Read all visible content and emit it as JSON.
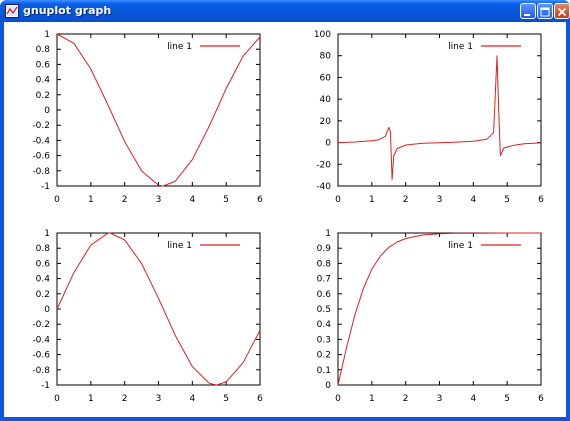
{
  "window": {
    "title": "gnuplot graph",
    "icon": "gnuplot-app-icon",
    "buttons": [
      "minimize",
      "maximize",
      "close"
    ]
  },
  "colors": {
    "line": "#e02020",
    "titlebar": "#0a58e4"
  },
  "chart_data": [
    {
      "type": "line",
      "xlim": [
        0,
        6
      ],
      "ylim": [
        -1,
        1
      ],
      "x_ticks": [
        "0",
        "1",
        "2",
        "3",
        "4",
        "5",
        "6"
      ],
      "y_ticks": [
        "1",
        "0.8",
        "0.6",
        "0.4",
        "0.2",
        "0",
        "-0.2",
        "-0.4",
        "-0.6",
        "-0.8",
        "-1"
      ],
      "grid": false,
      "legend": "top-right",
      "series": [
        {
          "name": "line 1",
          "color": "#e02020",
          "x": [
            0,
            0.5,
            1,
            1.5,
            2,
            2.5,
            3,
            3.14,
            3.5,
            4,
            4.5,
            5,
            5.5,
            6
          ],
          "y": [
            1,
            0.878,
            0.54,
            0.071,
            -0.416,
            -0.801,
            -0.99,
            -1,
            -0.936,
            -0.654,
            -0.211,
            0.284,
            0.709,
            0.96
          ]
        }
      ]
    },
    {
      "type": "line",
      "xlim": [
        0,
        6
      ],
      "ylim": [
        -40,
        100
      ],
      "x_ticks": [
        "0",
        "1",
        "2",
        "3",
        "4",
        "5",
        "6"
      ],
      "y_ticks": [
        "100",
        "80",
        "60",
        "40",
        "20",
        "0",
        "-20",
        "-40"
      ],
      "grid": false,
      "legend": "top-right",
      "series": [
        {
          "name": "line 1",
          "color": "#e02020",
          "x": [
            0,
            0.5,
            1,
            1.2,
            1.4,
            1.5,
            1.55,
            1.6,
            1.65,
            1.75,
            2,
            2.5,
            3,
            3.5,
            4,
            4.4,
            4.6,
            4.7,
            4.75,
            4.8,
            4.9,
            5.2,
            5.5,
            6
          ],
          "y": [
            0,
            0.5,
            1.6,
            2.6,
            5.8,
            14,
            10,
            -34,
            -12,
            -5.5,
            -2.2,
            -0.7,
            -0.1,
            0.4,
            1.2,
            3.1,
            9,
            80,
            30,
            -12,
            -5,
            -2.4,
            -1,
            -0.3
          ]
        }
      ]
    },
    {
      "type": "line",
      "xlim": [
        0,
        6
      ],
      "ylim": [
        -1,
        1
      ],
      "x_ticks": [
        "0",
        "1",
        "2",
        "3",
        "4",
        "5",
        "6"
      ],
      "y_ticks": [
        "1",
        "0.8",
        "0.6",
        "0.4",
        "0.2",
        "0",
        "-0.2",
        "-0.4",
        "-0.6",
        "-0.8",
        "-1"
      ],
      "grid": false,
      "legend": "top-right",
      "series": [
        {
          "name": "line 1",
          "color": "#e02020",
          "x": [
            0,
            0.5,
            1,
            1.5,
            1.57,
            2,
            2.5,
            3,
            3.5,
            4,
            4.5,
            4.71,
            5,
            5.5,
            6
          ],
          "y": [
            0,
            0.479,
            0.841,
            0.997,
            1,
            0.909,
            0.598,
            0.141,
            -0.351,
            -0.757,
            -0.978,
            -1,
            -0.959,
            -0.706,
            -0.279
          ]
        }
      ]
    },
    {
      "type": "line",
      "xlim": [
        0,
        6
      ],
      "ylim": [
        0,
        1
      ],
      "x_ticks": [
        "0",
        "1",
        "2",
        "3",
        "4",
        "5",
        "6"
      ],
      "y_ticks": [
        "1",
        "0.9",
        "0.8",
        "0.7",
        "0.6",
        "0.5",
        "0.4",
        "0.3",
        "0.2",
        "0.1",
        "0"
      ],
      "grid": false,
      "legend": "top-right",
      "series": [
        {
          "name": "line 1",
          "color": "#e02020",
          "x": [
            0,
            0.25,
            0.5,
            0.75,
            1,
            1.25,
            1.5,
            1.75,
            2,
            2.5,
            3,
            3.5,
            4,
            5,
            6
          ],
          "y": [
            0,
            0.245,
            0.462,
            0.635,
            0.762,
            0.848,
            0.905,
            0.941,
            0.964,
            0.987,
            0.995,
            0.998,
            0.999,
            1,
            1
          ]
        }
      ]
    }
  ]
}
